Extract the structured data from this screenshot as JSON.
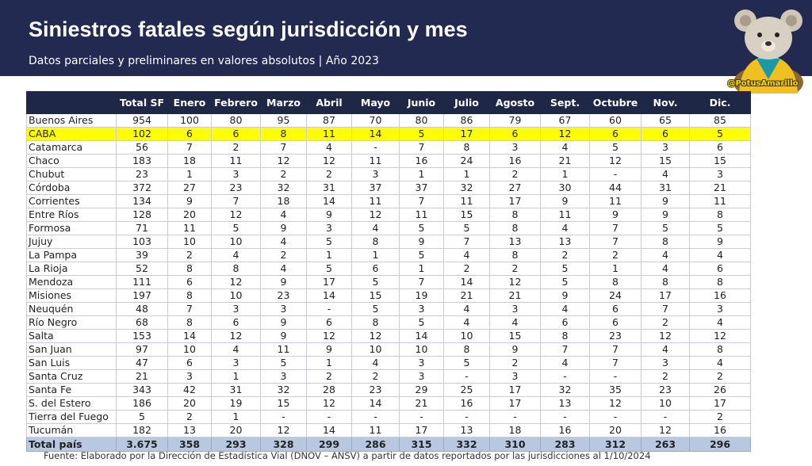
{
  "header": {
    "title": "Siniestros fatales según jurisdicción y mes",
    "subtitle": "Datos parciales y preliminares en valores absolutos | Año 2023",
    "handle": "@PotusAmarillo",
    "background": "#232a52"
  },
  "table": {
    "columns": [
      "",
      "Total SF",
      "Enero",
      "Febrero",
      "Marzo",
      "Abril",
      "Mayo",
      "Junio",
      "Julio",
      "Agosto",
      "Sept.",
      "Octubre",
      "Nov.",
      "Dic."
    ],
    "rows": [
      {
        "name": "Buenos Aires",
        "values": [
          "954",
          "100",
          "80",
          "95",
          "87",
          "70",
          "80",
          "86",
          "79",
          "67",
          "60",
          "65",
          "85"
        ]
      },
      {
        "name": "CABA",
        "highlight": true,
        "values": [
          "102",
          "6",
          "6",
          "8",
          "11",
          "14",
          "5",
          "17",
          "6",
          "12",
          "6",
          "6",
          "5"
        ]
      },
      {
        "name": "Catamarca",
        "values": [
          "56",
          "7",
          "2",
          "7",
          "4",
          "-",
          "7",
          "8",
          "3",
          "4",
          "5",
          "3",
          "6"
        ]
      },
      {
        "name": "Chaco",
        "values": [
          "183",
          "18",
          "11",
          "12",
          "12",
          "11",
          "16",
          "24",
          "16",
          "21",
          "12",
          "15",
          "15"
        ]
      },
      {
        "name": "Chubut",
        "values": [
          "23",
          "1",
          "3",
          "2",
          "2",
          "3",
          "1",
          "1",
          "2",
          "1",
          "-",
          "4",
          "3"
        ]
      },
      {
        "name": "Córdoba",
        "values": [
          "372",
          "27",
          "23",
          "32",
          "31",
          "37",
          "37",
          "32",
          "27",
          "30",
          "44",
          "31",
          "21"
        ]
      },
      {
        "name": "Corrientes",
        "values": [
          "134",
          "9",
          "7",
          "18",
          "14",
          "11",
          "7",
          "11",
          "17",
          "9",
          "11",
          "9",
          "11"
        ]
      },
      {
        "name": "Entre Ríos",
        "values": [
          "128",
          "20",
          "12",
          "4",
          "9",
          "12",
          "11",
          "15",
          "8",
          "11",
          "9",
          "9",
          "8"
        ]
      },
      {
        "name": "Formosa",
        "values": [
          "71",
          "11",
          "5",
          "9",
          "3",
          "4",
          "5",
          "5",
          "8",
          "4",
          "7",
          "5",
          "5"
        ]
      },
      {
        "name": "Jujuy",
        "values": [
          "103",
          "10",
          "10",
          "4",
          "5",
          "8",
          "9",
          "7",
          "13",
          "13",
          "7",
          "8",
          "9"
        ]
      },
      {
        "name": "La Pampa",
        "values": [
          "39",
          "2",
          "4",
          "2",
          "1",
          "1",
          "5",
          "4",
          "8",
          "2",
          "2",
          "4",
          "4"
        ]
      },
      {
        "name": "La Rioja",
        "values": [
          "52",
          "8",
          "8",
          "4",
          "5",
          "6",
          "1",
          "2",
          "2",
          "5",
          "1",
          "4",
          "6"
        ]
      },
      {
        "name": "Mendoza",
        "values": [
          "111",
          "6",
          "12",
          "9",
          "17",
          "5",
          "7",
          "14",
          "12",
          "5",
          "8",
          "8",
          "8"
        ]
      },
      {
        "name": "Misiones",
        "values": [
          "197",
          "8",
          "10",
          "23",
          "14",
          "15",
          "19",
          "21",
          "21",
          "9",
          "24",
          "17",
          "16"
        ]
      },
      {
        "name": "Neuquén",
        "values": [
          "48",
          "7",
          "3",
          "3",
          "-",
          "5",
          "3",
          "4",
          "3",
          "4",
          "6",
          "7",
          "3"
        ]
      },
      {
        "name": "Río Negro",
        "values": [
          "68",
          "8",
          "6",
          "9",
          "6",
          "8",
          "5",
          "4",
          "4",
          "6",
          "6",
          "2",
          "4"
        ]
      },
      {
        "name": "Salta",
        "values": [
          "153",
          "14",
          "12",
          "9",
          "12",
          "12",
          "14",
          "10",
          "15",
          "8",
          "23",
          "12",
          "12"
        ]
      },
      {
        "name": "San Juan",
        "values": [
          "97",
          "10",
          "4",
          "11",
          "9",
          "10",
          "10",
          "8",
          "9",
          "7",
          "7",
          "4",
          "8"
        ]
      },
      {
        "name": "San Luis",
        "values": [
          "47",
          "6",
          "3",
          "5",
          "1",
          "4",
          "3",
          "5",
          "2",
          "4",
          "7",
          "3",
          "4"
        ]
      },
      {
        "name": "Santa Cruz",
        "values": [
          "21",
          "3",
          "1",
          "3",
          "2",
          "2",
          "3",
          "-",
          "3",
          "-",
          "-",
          "2",
          "2"
        ]
      },
      {
        "name": "Santa Fe",
        "values": [
          "343",
          "42",
          "31",
          "32",
          "28",
          "23",
          "29",
          "25",
          "17",
          "32",
          "35",
          "23",
          "26"
        ]
      },
      {
        "name": "S. del Estero",
        "values": [
          "186",
          "20",
          "19",
          "15",
          "12",
          "14",
          "21",
          "16",
          "17",
          "13",
          "12",
          "10",
          "17"
        ]
      },
      {
        "name": "Tierra del Fuego",
        "values": [
          "5",
          "2",
          "1",
          "-",
          "-",
          "-",
          "-",
          "-",
          "-",
          "-",
          "-",
          "-",
          "2"
        ]
      },
      {
        "name": "Tucumán",
        "values": [
          "182",
          "13",
          "20",
          "12",
          "14",
          "11",
          "17",
          "13",
          "18",
          "16",
          "20",
          "12",
          "16"
        ]
      }
    ],
    "total": {
      "name": "Total país",
      "values": [
        "3.675",
        "358",
        "293",
        "328",
        "299",
        "286",
        "315",
        "332",
        "310",
        "283",
        "312",
        "263",
        "296"
      ]
    }
  },
  "footnote": "Fuente: Elaborado por la Dirección de Estadística Vial (DNOV – ANSV) a partir de datos reportados por las jurisdicciones al 1/10/2024"
}
